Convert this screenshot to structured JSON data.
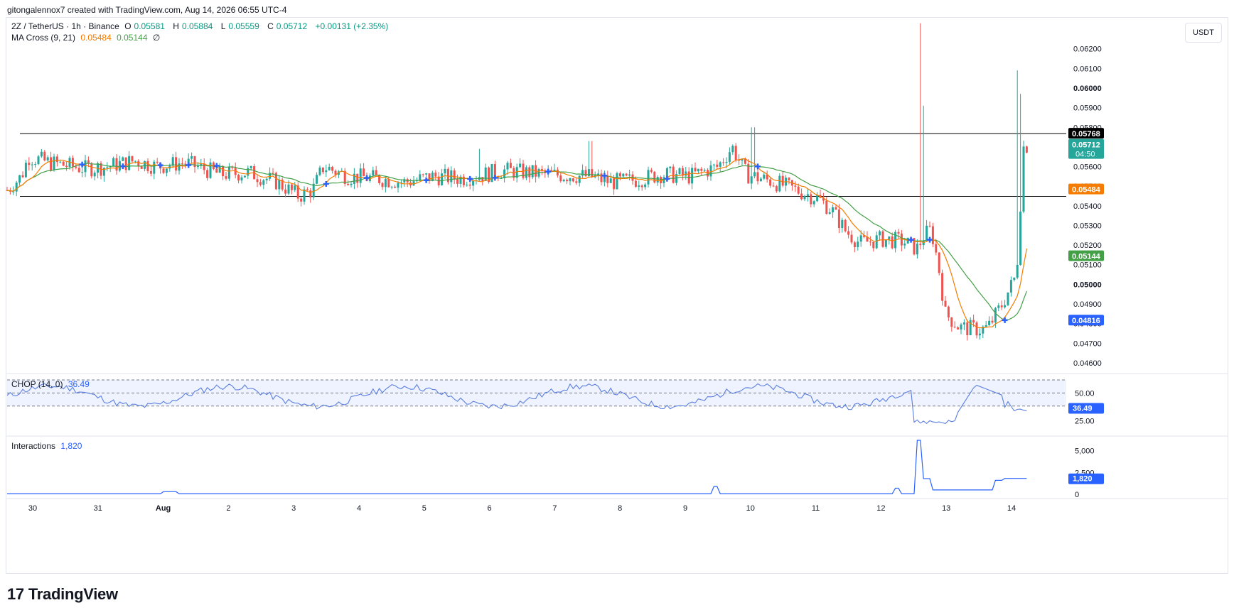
{
  "header": {
    "attribution": "gitongalennox7 created with TradingView.com, Aug 14, 2026 06:55 UTC-4"
  },
  "symbol": {
    "name": "2Z / TetherUS · 1h · Binance",
    "o_label": "O",
    "o": "0.05581",
    "h_label": "H",
    "h": "0.05884",
    "l_label": "L",
    "l": "0.05559",
    "c_label": "C",
    "c": "0.05712",
    "change": "+0.00131 (+2.35%)"
  },
  "ma": {
    "label": "MA Cross (9, 21)",
    "fast": "0.05484",
    "slow": "0.05144",
    "symbol": "∅"
  },
  "chop": {
    "label": "CHOP (14, 0)",
    "value": "36.49"
  },
  "interactions": {
    "label": "Interactions",
    "value": "1,820"
  },
  "currency_button": "USDT",
  "colors": {
    "up": "#26a69a",
    "down": "#ef5350",
    "ma_fast": "#f57c00",
    "ma_slow": "#43a047",
    "cross": "#2962ff",
    "chop_line": "#5b7fe0",
    "inter_line": "#2962ff"
  },
  "footer": {
    "logo": "TradingView",
    "logo_mark": "17"
  },
  "chart_data": {
    "type": "candlestick",
    "price_axis": {
      "ticks": [
        "0.06200",
        "0.06100",
        "0.06000",
        "0.05900",
        "0.05800",
        "0.05700",
        "0.05600",
        "0.05500",
        "0.05400",
        "0.05300",
        "0.05200",
        "0.05100",
        "0.05000",
        "0.04900",
        "0.04800",
        "0.04700",
        "0.04600"
      ],
      "range": [
        0.0456,
        0.0634
      ]
    },
    "price_labels": [
      {
        "value": "0.05768",
        "bg": "#000000",
        "price": 0.05768
      },
      {
        "value": "0.05712",
        "sub": "04:50",
        "bg": "#26a69a",
        "price": 0.05712
      },
      {
        "value": "0.05484",
        "bg": "#f57c00",
        "price": 0.05484
      },
      {
        "value": "0.05144",
        "bg": "#43a047",
        "price": 0.05144
      },
      {
        "value": "0.04816",
        "bg": "#2962ff",
        "price": 0.04816
      }
    ],
    "horizontal_lines": [
      0.05768,
      0.05448
    ],
    "time_axis": [
      "30",
      "31",
      "Aug",
      "2",
      "3",
      "4",
      "5",
      "6",
      "7",
      "8",
      "9",
      "10",
      "11",
      "12",
      "13",
      "14"
    ],
    "price_path": [
      [
        0,
        0.0548
      ],
      [
        20,
        0.0555
      ],
      [
        30,
        0.0565
      ],
      [
        60,
        0.0562
      ],
      [
        110,
        0.0559
      ],
      [
        140,
        0.056
      ],
      [
        180,
        0.0563
      ],
      [
        210,
        0.056
      ],
      [
        250,
        0.0562
      ],
      [
        300,
        0.0556
      ],
      [
        340,
        0.0557
      ],
      [
        380,
        0.0552
      ],
      [
        410,
        0.0545
      ],
      [
        430,
        0.0548
      ],
      [
        445,
        0.056
      ],
      [
        480,
        0.0555
      ],
      [
        520,
        0.0554
      ],
      [
        560,
        0.0552
      ],
      [
        600,
        0.0555
      ],
      [
        640,
        0.0554
      ],
      [
        700,
        0.0558
      ],
      [
        760,
        0.0556
      ],
      [
        820,
        0.0555
      ],
      [
        850,
        0.0552
      ],
      [
        880,
        0.0553
      ],
      [
        920,
        0.0556
      ],
      [
        960,
        0.0555
      ],
      [
        1000,
        0.056
      ],
      [
        1020,
        0.057
      ],
      [
        1040,
        0.0556
      ],
      [
        1080,
        0.0552
      ],
      [
        1110,
        0.0548
      ],
      [
        1140,
        0.0544
      ],
      [
        1160,
        0.0538
      ],
      [
        1180,
        0.0527
      ],
      [
        1200,
        0.0521
      ],
      [
        1230,
        0.0523
      ],
      [
        1260,
        0.0522
      ],
      [
        1280,
        0.0518
      ],
      [
        1290,
        0.0525
      ],
      [
        1300,
        0.0528
      ],
      [
        1310,
        0.051
      ],
      [
        1320,
        0.0485
      ],
      [
        1340,
        0.0478
      ],
      [
        1370,
        0.0477
      ],
      [
        1380,
        0.0478
      ],
      [
        1400,
        0.049
      ],
      [
        1420,
        0.0505
      ],
      [
        1430,
        0.057
      ],
      [
        1437,
        0.0571
      ]
    ],
    "chop": {
      "range": [
        15,
        65
      ],
      "ticks": [
        "50.00",
        "25.00"
      ],
      "band": [
        38.2,
        61.8
      ],
      "mid": 50
    },
    "interactions": {
      "range": [
        0,
        6200
      ],
      "ticks": [
        "5,000",
        "2,500",
        "0"
      ]
    }
  }
}
